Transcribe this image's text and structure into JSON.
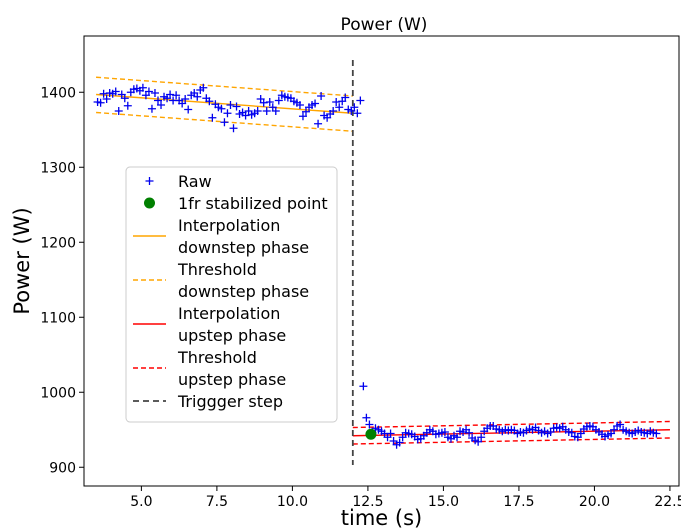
{
  "chart_data": {
    "type": "scatter",
    "title": "Power (W)",
    "xlabel": "time (s)",
    "ylabel": "Power (W)",
    "xlim": [
      3.1,
      22.8
    ],
    "ylim": [
      875,
      1475
    ],
    "x_ticks": [
      5.0,
      7.5,
      10.0,
      12.5,
      15.0,
      17.5,
      20.0,
      22.5
    ],
    "x_tick_labels": [
      "5.0",
      "7.5",
      "10.0",
      "12.5",
      "15.0",
      "17.5",
      "20.0",
      "22.5"
    ],
    "y_ticks": [
      900,
      1000,
      1100,
      1200,
      1300,
      1400
    ],
    "y_tick_labels": [
      "900",
      "1000",
      "1100",
      "1200",
      "1300",
      "1400"
    ],
    "legend_position": "center-left",
    "series": [
      {
        "name": "Raw",
        "kind": "scatter",
        "marker": "plus",
        "color": "#0000ee",
        "points": [
          [
            3.55,
            1387
          ],
          [
            3.65,
            1386
          ],
          [
            3.75,
            1398
          ],
          [
            3.85,
            1391
          ],
          [
            3.95,
            1399
          ],
          [
            4.05,
            1398
          ],
          [
            4.15,
            1401
          ],
          [
            4.25,
            1375
          ],
          [
            4.35,
            1397
          ],
          [
            4.45,
            1392
          ],
          [
            4.55,
            1382
          ],
          [
            4.65,
            1400
          ],
          [
            4.75,
            1404
          ],
          [
            4.85,
            1405
          ],
          [
            4.95,
            1402
          ],
          [
            5.05,
            1406
          ],
          [
            5.15,
            1396
          ],
          [
            5.25,
            1401
          ],
          [
            5.35,
            1378
          ],
          [
            5.45,
            1399
          ],
          [
            5.55,
            1389
          ],
          [
            5.65,
            1383
          ],
          [
            5.75,
            1394
          ],
          [
            5.85,
            1392
          ],
          [
            5.95,
            1397
          ],
          [
            6.05,
            1389
          ],
          [
            6.15,
            1396
          ],
          [
            6.25,
            1389
          ],
          [
            6.35,
            1385
          ],
          [
            6.45,
            1391
          ],
          [
            6.55,
            1377
          ],
          [
            6.65,
            1396
          ],
          [
            6.75,
            1399
          ],
          [
            6.85,
            1394
          ],
          [
            6.95,
            1403
          ],
          [
            7.05,
            1406
          ],
          [
            7.15,
            1392
          ],
          [
            7.25,
            1388
          ],
          [
            7.35,
            1366
          ],
          [
            7.45,
            1384
          ],
          [
            7.55,
            1380
          ],
          [
            7.65,
            1378
          ],
          [
            7.75,
            1360
          ],
          [
            7.85,
            1372
          ],
          [
            7.95,
            1383
          ],
          [
            8.05,
            1352
          ],
          [
            8.15,
            1381
          ],
          [
            8.25,
            1371
          ],
          [
            8.35,
            1373
          ],
          [
            8.45,
            1369
          ],
          [
            8.55,
            1375
          ],
          [
            8.65,
            1370
          ],
          [
            8.75,
            1372
          ],
          [
            8.85,
            1375
          ],
          [
            8.95,
            1391
          ],
          [
            9.05,
            1386
          ],
          [
            9.15,
            1375
          ],
          [
            9.25,
            1387
          ],
          [
            9.35,
            1380
          ],
          [
            9.45,
            1375
          ],
          [
            9.55,
            1389
          ],
          [
            9.65,
            1396
          ],
          [
            9.75,
            1394
          ],
          [
            9.85,
            1393
          ],
          [
            9.95,
            1392
          ],
          [
            10.05,
            1388
          ],
          [
            10.15,
            1386
          ],
          [
            10.25,
            1383
          ],
          [
            10.35,
            1368
          ],
          [
            10.45,
            1374
          ],
          [
            10.55,
            1380
          ],
          [
            10.65,
            1383
          ],
          [
            10.75,
            1385
          ],
          [
            10.85,
            1358
          ],
          [
            10.95,
            1395
          ],
          [
            11.05,
            1369
          ],
          [
            11.15,
            1366
          ],
          [
            11.25,
            1371
          ],
          [
            11.35,
            1375
          ],
          [
            11.45,
            1387
          ],
          [
            11.55,
            1380
          ],
          [
            11.65,
            1388
          ],
          [
            11.75,
            1393
          ],
          [
            11.85,
            1377
          ],
          [
            11.95,
            1375
          ],
          [
            12.05,
            1380
          ],
          [
            12.15,
            1372
          ],
          [
            12.25,
            1389
          ],
          [
            12.35,
            1008
          ],
          [
            12.45,
            966
          ],
          [
            12.55,
            957
          ],
          [
            12.65,
            946
          ],
          [
            12.75,
            952
          ],
          [
            12.85,
            950
          ],
          [
            12.95,
            948
          ],
          [
            13.05,
            945
          ],
          [
            13.15,
            940
          ],
          [
            13.25,
            945
          ],
          [
            13.35,
            935
          ],
          [
            13.45,
            930
          ],
          [
            13.55,
            933
          ],
          [
            13.65,
            940
          ],
          [
            13.75,
            946
          ],
          [
            13.85,
            945
          ],
          [
            13.95,
            944
          ],
          [
            14.05,
            941
          ],
          [
            14.15,
            937
          ],
          [
            14.25,
            938
          ],
          [
            14.35,
            942
          ],
          [
            14.45,
            946
          ],
          [
            14.55,
            950
          ],
          [
            14.65,
            948
          ],
          [
            14.75,
            944
          ],
          [
            14.85,
            945
          ],
          [
            14.95,
            946
          ],
          [
            15.05,
            947
          ],
          [
            15.15,
            940
          ],
          [
            15.25,
            938
          ],
          [
            15.35,
            942
          ],
          [
            15.45,
            940
          ],
          [
            15.55,
            948
          ],
          [
            15.65,
            947
          ],
          [
            15.75,
            950
          ],
          [
            15.85,
            946
          ],
          [
            15.95,
            939
          ],
          [
            16.05,
            936
          ],
          [
            16.15,
            934
          ],
          [
            16.25,
            940
          ],
          [
            16.35,
            948
          ],
          [
            16.45,
            952
          ],
          [
            16.55,
            955
          ],
          [
            16.65,
            955
          ],
          [
            16.75,
            951
          ],
          [
            16.85,
            950
          ],
          [
            16.95,
            948
          ],
          [
            17.05,
            950
          ],
          [
            17.15,
            949
          ],
          [
            17.25,
            950
          ],
          [
            17.35,
            949
          ],
          [
            17.45,
            945
          ],
          [
            17.55,
            947
          ],
          [
            17.65,
            946
          ],
          [
            17.75,
            949
          ],
          [
            17.85,
            951
          ],
          [
            17.95,
            950
          ],
          [
            18.05,
            953
          ],
          [
            18.15,
            949
          ],
          [
            18.25,
            946
          ],
          [
            18.35,
            948
          ],
          [
            18.45,
            945
          ],
          [
            18.55,
            947
          ],
          [
            18.65,
            952
          ],
          [
            18.75,
            953
          ],
          [
            18.85,
            952
          ],
          [
            18.95,
            954
          ],
          [
            19.05,
            950
          ],
          [
            19.15,
            947
          ],
          [
            19.25,
            946
          ],
          [
            19.35,
            941
          ],
          [
            19.45,
            940
          ],
          [
            19.55,
            945
          ],
          [
            19.65,
            951
          ],
          [
            19.75,
            954
          ],
          [
            19.85,
            955
          ],
          [
            19.95,
            954
          ],
          [
            20.05,
            950
          ],
          [
            20.15,
            947
          ],
          [
            20.25,
            944
          ],
          [
            20.35,
            941
          ],
          [
            20.45,
            943
          ],
          [
            20.55,
            945
          ],
          [
            20.65,
            950
          ],
          [
            20.75,
            955
          ],
          [
            20.85,
            957
          ],
          [
            20.95,
            950
          ],
          [
            21.05,
            948
          ],
          [
            21.15,
            946
          ],
          [
            21.25,
            945
          ],
          [
            21.35,
            947
          ],
          [
            21.45,
            949
          ],
          [
            21.55,
            947
          ],
          [
            21.65,
            946
          ],
          [
            21.75,
            945
          ],
          [
            21.85,
            948
          ],
          [
            21.95,
            946
          ],
          [
            22.05,
            945
          ]
        ]
      },
      {
        "name": "1fr stabilized point",
        "kind": "point",
        "color": "#008000",
        "points": [
          [
            12.6,
            944
          ]
        ]
      },
      {
        "name": "Interpolation\ndownstep phase",
        "kind": "line",
        "style": "solid",
        "color": "#ffa500",
        "points": [
          [
            3.5,
            1397
          ],
          [
            12.0,
            1372
          ]
        ]
      },
      {
        "name": "Threshold\ndownstep phase",
        "kind": "line",
        "style": "dashed",
        "color": "#ffa500",
        "lines": [
          [
            [
              3.5,
              1420
            ],
            [
              12.0,
              1395
            ]
          ],
          [
            [
              3.5,
              1373
            ],
            [
              12.0,
              1348
            ]
          ]
        ]
      },
      {
        "name": "Interpolation\nupstep phase",
        "kind": "line",
        "style": "solid",
        "color": "#ff0000",
        "points": [
          [
            12.0,
            942
          ],
          [
            22.5,
            950
          ]
        ]
      },
      {
        "name": "Threshold\nupstep phase",
        "kind": "line",
        "style": "dashed",
        "color": "#ff0000",
        "lines": [
          [
            [
              12.0,
              953
            ],
            [
              22.5,
              961
            ]
          ],
          [
            [
              12.0,
              931
            ],
            [
              22.5,
              939
            ]
          ]
        ]
      },
      {
        "name": "Triggger step",
        "kind": "vline",
        "style": "dashed",
        "color": "#444444",
        "x": 12.0,
        "y_range": [
          903,
          1443
        ]
      }
    ]
  }
}
